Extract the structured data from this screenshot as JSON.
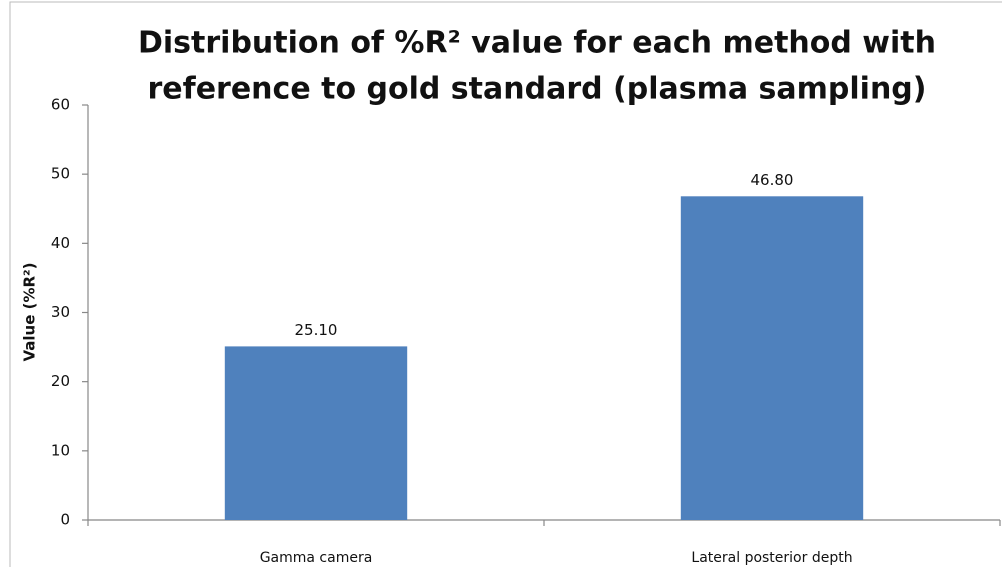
{
  "chart_data": {
    "type": "bar",
    "title": [
      "Distribution of %R² value for each method with",
      "reference to gold standard (plasma sampling)"
    ],
    "y_label": "Value (%R²)",
    "categories": [
      "Gamma camera",
      "Lateral posterior depth"
    ],
    "values": [
      25.1,
      46.8
    ],
    "value_labels": [
      "25.10",
      "46.80"
    ],
    "color": "#4f81bd",
    "ylim": [
      0,
      60
    ],
    "yticks": [
      0,
      10,
      20,
      30,
      40,
      50,
      60
    ],
    "grid": false
  }
}
